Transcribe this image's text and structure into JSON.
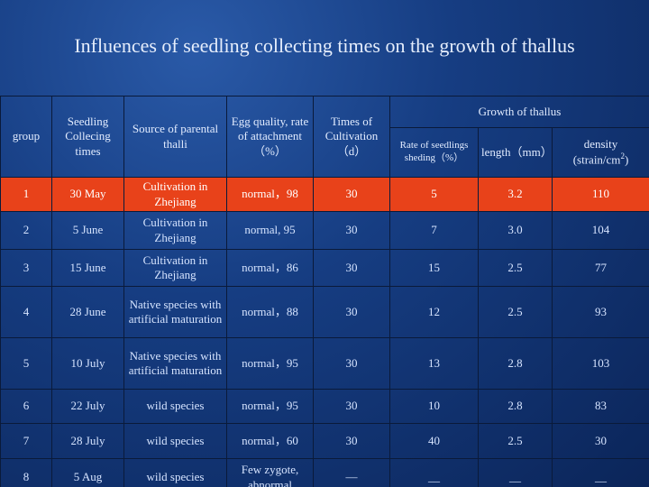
{
  "title": "Influences of seedling collecting times on the growth of thallus",
  "table": {
    "headers": [
      "group",
      "Seedling Collecing times",
      "Source of parental thalli",
      "Egg quality, rate of attachment（%）",
      "Times of Cultivation（d）"
    ],
    "group_header": "Growth of thallus",
    "sub_headers": [
      "Rate of seedlings sheding（%）",
      "length（mm）"
    ],
    "density_header": {
      "text": "density (strain/cm",
      "sup": "2",
      "tail": ")"
    },
    "rows": [
      [
        "1",
        "30 May",
        "Cultivation in Zhejiang",
        "normal，98",
        "30",
        "5",
        "3.2",
        "110"
      ],
      [
        "2",
        "5 June",
        "Cultivation in Zhejiang",
        "normal, 95",
        "30",
        "7",
        "3.0",
        "104"
      ],
      [
        "3",
        "15 June",
        "Cultivation in Zhejiang",
        "normal，86",
        "30",
        "15",
        "2.5",
        "77"
      ],
      [
        "4",
        "28 June",
        "Native species with artificial maturation",
        "normal，88",
        "30",
        "12",
        "2.5",
        "93"
      ],
      [
        "5",
        "10 July",
        "Native species with artificial maturation",
        "normal，95",
        "30",
        "13",
        "2.8",
        "103"
      ],
      [
        "6",
        "22 July",
        "wild species",
        "normal，95",
        "30",
        "10",
        "2.8",
        "83"
      ],
      [
        "7",
        "28 July",
        "wild species",
        "normal，60",
        "30",
        "40",
        "2.5",
        "30"
      ],
      [
        "8",
        "5 Aug",
        "wild species",
        "Few zygote, abnormal",
        "—",
        "__",
        "__",
        "__"
      ]
    ]
  }
}
